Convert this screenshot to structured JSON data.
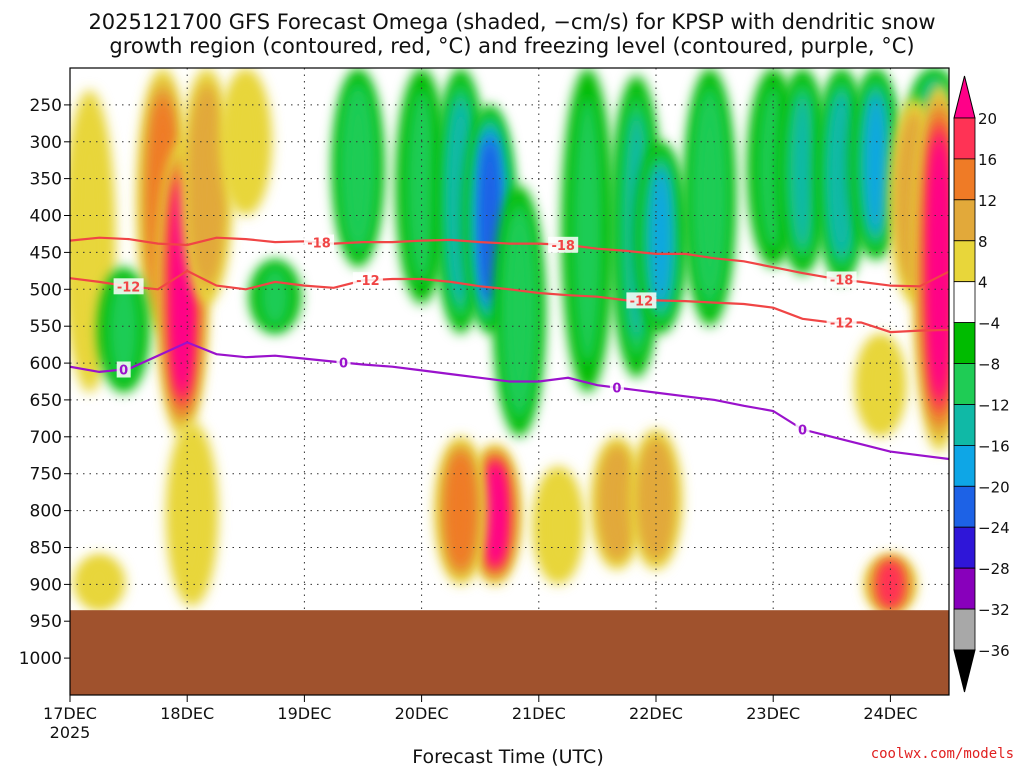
{
  "chart_data": {
    "type": "heatmap",
    "title_line1": "2025121700 GFS Forecast Omega (shaded, −cm/s) for KPSP with dendritic snow",
    "title_line2": "growth region (contoured, red, °C) and freezing level (contoured, purple, °C)",
    "xlabel": "Forecast Time (UTC)",
    "ylabel": "",
    "x_ticks": [
      "17DEC",
      "18DEC",
      "19DEC",
      "20DEC",
      "21DEC",
      "22DEC",
      "23DEC",
      "24DEC"
    ],
    "x_first_year": "2025",
    "x_range_hours": [
      0,
      180
    ],
    "y_ticks": [
      250,
      300,
      350,
      400,
      450,
      500,
      550,
      600,
      650,
      700,
      750,
      800,
      850,
      900,
      950,
      1000
    ],
    "y_range_hpa": [
      200,
      1050
    ],
    "surface_ground_hpa": 935,
    "colorbar": {
      "labels": [
        "20",
        "16",
        "12",
        "8",
        "4",
        "−4",
        "−8",
        "−12",
        "−16",
        "−20",
        "−24",
        "−28",
        "−32",
        "−36"
      ],
      "bounds": [
        24,
        20,
        16,
        12,
        8,
        4,
        -4,
        -8,
        -12,
        -16,
        -20,
        -24,
        -28,
        -32,
        -36,
        -40
      ],
      "colors": [
        "#ff0088",
        "#ff3355",
        "#ef7b26",
        "#e2a93a",
        "#e8d63a",
        "#ffffff",
        "#00bb00",
        "#1fcc55",
        "#10b9a6",
        "#0ea6e6",
        "#1d62e6",
        "#2f16d8",
        "#8800bb",
        "#a8a8a8",
        "#000000"
      ]
    },
    "series": [
      {
        "name": "-18 °C isotherm",
        "color": "#f04545",
        "label": "-18",
        "hours": [
          0,
          6,
          12,
          18,
          24,
          30,
          36,
          42,
          48,
          54,
          60,
          66,
          72,
          78,
          84,
          90,
          96,
          102,
          108,
          114,
          120,
          126,
          132,
          138,
          144,
          150,
          156,
          162,
          168,
          174,
          180
        ],
        "pressure": [
          434,
          430,
          432,
          438,
          440,
          430,
          432,
          436,
          435,
          438,
          436,
          436,
          434,
          433,
          436,
          438,
          438,
          440,
          445,
          448,
          452,
          452,
          458,
          462,
          470,
          478,
          485,
          490,
          495,
          496,
          476
        ]
      },
      {
        "name": "-12 °C isotherm",
        "color": "#f04545",
        "label": "-12",
        "hours": [
          0,
          6,
          12,
          18,
          24,
          30,
          36,
          42,
          48,
          54,
          60,
          66,
          72,
          78,
          84,
          90,
          96,
          102,
          108,
          114,
          120,
          126,
          132,
          138,
          144,
          150,
          156,
          162,
          168,
          174,
          180
        ],
        "pressure": [
          485,
          490,
          496,
          500,
          475,
          495,
          500,
          490,
          495,
          498,
          488,
          486,
          486,
          490,
          496,
          500,
          505,
          508,
          510,
          515,
          515,
          516,
          518,
          520,
          525,
          540,
          545,
          545,
          558,
          556,
          555
        ]
      },
      {
        "name": "0 °C freezing level",
        "color": "#9a12cc",
        "label": "0",
        "hours": [
          0,
          6,
          12,
          18,
          24,
          30,
          36,
          42,
          48,
          54,
          60,
          66,
          72,
          78,
          84,
          90,
          96,
          102,
          108,
          114,
          120,
          126,
          132,
          138,
          144,
          150,
          156,
          162,
          168,
          174,
          180
        ],
        "pressure": [
          605,
          612,
          608,
          590,
          572,
          588,
          592,
          590,
          594,
          598,
          602,
          605,
          610,
          615,
          620,
          625,
          625,
          620,
          630,
          635,
          640,
          645,
          650,
          658,
          665,
          690,
          700,
          710,
          720,
          725,
          730
        ]
      }
    ],
    "contour_labels": [
      {
        "series": 0,
        "text": "-18",
        "hour": 51
      },
      {
        "series": 0,
        "text": "-18",
        "hour": 101
      },
      {
        "series": 0,
        "text": "-18",
        "hour": 158
      },
      {
        "series": 1,
        "text": "-12",
        "hour": 12
      },
      {
        "series": 1,
        "text": "-12",
        "hour": 61
      },
      {
        "series": 1,
        "text": "-12",
        "hour": 117
      },
      {
        "series": 1,
        "text": "-12",
        "hour": 158
      },
      {
        "series": 2,
        "text": "0",
        "hour": 11
      },
      {
        "series": 2,
        "text": "0",
        "hour": 56
      },
      {
        "series": 2,
        "text": "0",
        "hour": 112
      },
      {
        "series": 2,
        "text": "0",
        "hour": 150
      }
    ],
    "omega_features": [
      {
        "hour": 4,
        "p_top": 230,
        "p_bot": 640,
        "value": 6
      },
      {
        "hour": 19,
        "p_top": 200,
        "p_bot": 560,
        "value": 14
      },
      {
        "hour": 23,
        "p_top": 300,
        "p_bot": 700,
        "value": 22
      },
      {
        "hour": 28,
        "p_top": 200,
        "p_bot": 520,
        "value": 10
      },
      {
        "hour": 36,
        "p_top": 200,
        "p_bot": 400,
        "value": 6
      },
      {
        "hour": 11,
        "p_top": 470,
        "p_bot": 640,
        "value": -8
      },
      {
        "hour": 42,
        "p_top": 460,
        "p_bot": 560,
        "value": -8
      },
      {
        "hour": 59,
        "p_top": 200,
        "p_bot": 470,
        "value": -10
      },
      {
        "hour": 72,
        "p_top": 200,
        "p_bot": 520,
        "value": -8
      },
      {
        "hour": 80,
        "p_top": 200,
        "p_bot": 560,
        "value": -14
      },
      {
        "hour": 86,
        "p_top": 250,
        "p_bot": 560,
        "value": -22
      },
      {
        "hour": 92,
        "p_top": 360,
        "p_bot": 700,
        "value": -10
      },
      {
        "hour": 106,
        "p_top": 200,
        "p_bot": 640,
        "value": -8
      },
      {
        "hour": 116,
        "p_top": 210,
        "p_bot": 620,
        "value": -12
      },
      {
        "hour": 121,
        "p_top": 300,
        "p_bot": 560,
        "value": -16
      },
      {
        "hour": 131,
        "p_top": 200,
        "p_bot": 550,
        "value": -10
      },
      {
        "hour": 144,
        "p_top": 200,
        "p_bot": 470,
        "value": -8
      },
      {
        "hour": 150,
        "p_top": 200,
        "p_bot": 480,
        "value": -12
      },
      {
        "hour": 158,
        "p_top": 200,
        "p_bot": 490,
        "value": -14
      },
      {
        "hour": 165,
        "p_top": 200,
        "p_bot": 460,
        "value": -16
      },
      {
        "hour": 177,
        "p_top": 200,
        "p_bot": 330,
        "value": -12
      },
      {
        "hour": 173,
        "p_top": 240,
        "p_bot": 520,
        "value": 10
      },
      {
        "hour": 178,
        "p_top": 220,
        "p_bot": 720,
        "value": 22
      },
      {
        "hour": 87,
        "p_top": 710,
        "p_bot": 900,
        "value": 22
      },
      {
        "hour": 80,
        "p_top": 700,
        "p_bot": 900,
        "value": 16
      },
      {
        "hour": 112,
        "p_top": 700,
        "p_bot": 880,
        "value": 10
      },
      {
        "hour": 120,
        "p_top": 690,
        "p_bot": 880,
        "value": 12
      },
      {
        "hour": 100,
        "p_top": 740,
        "p_bot": 900,
        "value": 6
      },
      {
        "hour": 166,
        "p_top": 560,
        "p_bot": 700,
        "value": 8
      },
      {
        "hour": 168,
        "p_top": 860,
        "p_bot": 940,
        "value": 18
      },
      {
        "hour": 25,
        "p_top": 680,
        "p_bot": 930,
        "value": 6
      },
      {
        "hour": 6,
        "p_top": 860,
        "p_bot": 935,
        "value": 5
      }
    ],
    "watermark": "coolwx.com/models"
  }
}
